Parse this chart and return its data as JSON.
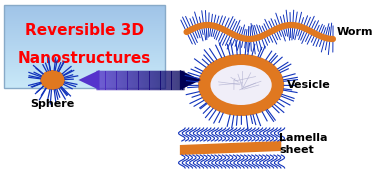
{
  "title_line1": "Reversible 3D",
  "title_line2": "Nanostructures",
  "title_color": "#ff0000",
  "title_box_facecolor": "#b8d8f0",
  "title_box_edgecolor": "#99bbdd",
  "label_sphere": "Sphere",
  "label_vesicle": "Vesicle",
  "label_worm": "Worm",
  "label_lamella1": "Lamella",
  "label_lamella2": "sheet",
  "orange_color": "#e07820",
  "hair_color": "#1133bb",
  "arrow_left_color": "#6644dd",
  "arrow_right_color": "#000066",
  "bg_color": "#ffffff",
  "label_fontsize": 8,
  "title_fontsize": 11,
  "fig_w": 3.78,
  "fig_h": 1.8,
  "dpi": 100
}
